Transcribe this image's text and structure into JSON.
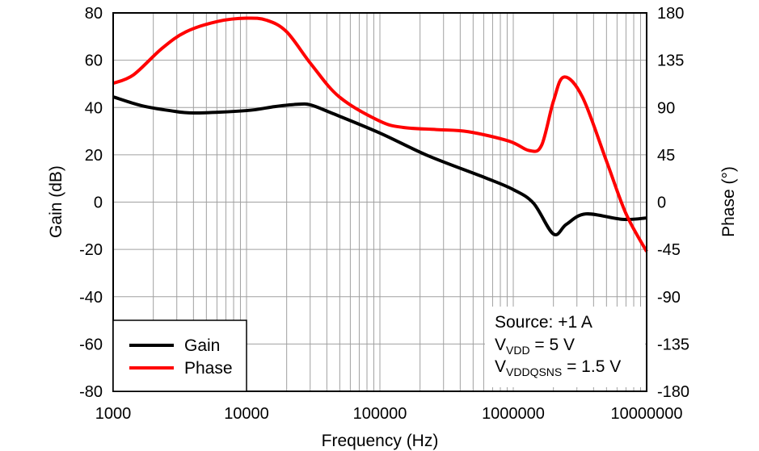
{
  "chart_data": {
    "type": "line",
    "title": "",
    "xlabel": "Frequency (Hz)",
    "ylabel": "Gain (dB)",
    "y2label": "Phase (°)",
    "xscale": "log",
    "xlim": [
      1000,
      10000000
    ],
    "ylim": [
      -80,
      80
    ],
    "y2lim": [
      -180,
      180
    ],
    "grid": true,
    "xticks": [
      "1000",
      "10000",
      "100000",
      "1000000",
      "10000000"
    ],
    "yticks": [
      "80",
      "60",
      "40",
      "20",
      "0",
      "-20",
      "-40",
      "-60",
      "-80"
    ],
    "y2ticks": [
      "180",
      "135",
      "90",
      "45",
      "0",
      "-45",
      "-90",
      "-135",
      "-180"
    ],
    "legend": {
      "placement": "bottom-left",
      "entries": [
        "Gain",
        "Phase"
      ]
    },
    "annotation": {
      "line1": "Source: +1 A",
      "line2_main": "V",
      "line2_sub": "VDD",
      "line2_rest": " = 5 V",
      "line3_main": "V",
      "line3_sub": "VDDQSNS",
      "line3_rest": " = 1.5 V"
    },
    "series": [
      {
        "name": "Gain",
        "axis": "left",
        "color": "#000000",
        "x": [
          1000,
          1630,
          2655,
          4040,
          10000,
          16300,
          24800,
          30600,
          43300,
          100000,
          230000,
          610000,
          1000000,
          1420000,
          2000000,
          2500000,
          3500000,
          6600000,
          10000000
        ],
        "y": [
          44.5,
          40.8,
          38.7,
          37.7,
          38.7,
          40.4,
          41.4,
          41,
          37.7,
          29.2,
          19.6,
          10.4,
          5.3,
          -0.5,
          -13.5,
          -9.4,
          -5,
          -7.3,
          -6.7
        ]
      },
      {
        "name": "Phase",
        "axis": "right",
        "color": "#ff0000",
        "x": [
          1000,
          1418,
          2311,
          3513,
          6128,
          10000,
          14180,
          20000,
          30600,
          49700,
          100000,
          150000,
          265000,
          460000,
          930000,
          1320000,
          1630000,
          2000000,
          2400000,
          3300000,
          5000000,
          7000000,
          10000000
        ],
        "y": [
          113,
          121,
          146,
          162,
          172,
          175,
          173,
          162,
          131,
          100,
          77,
          71,
          69,
          67,
          58,
          49,
          54,
          96,
          119,
          100,
          39,
          -11,
          -47
        ]
      }
    ]
  }
}
